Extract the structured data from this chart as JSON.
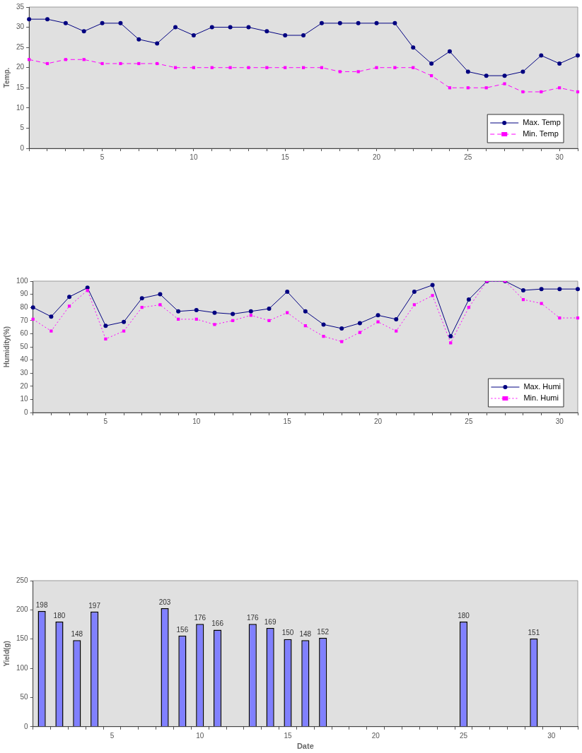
{
  "chart_data": [
    {
      "type": "line",
      "ylabel": "Temp.",
      "categories": [
        null,
        null,
        null,
        null,
        "5",
        null,
        null,
        null,
        null,
        "10",
        null,
        null,
        null,
        null,
        "15",
        null,
        null,
        null,
        null,
        "20",
        null,
        null,
        null,
        null,
        "25",
        null,
        null,
        null,
        null,
        "30",
        null
      ],
      "ylim": [
        0,
        35
      ],
      "yticks": [
        0,
        5,
        10,
        15,
        20,
        25,
        30,
        35
      ],
      "legend": "bottom right",
      "series": [
        {
          "name": "Max. Temp",
          "color": "#000080",
          "marker": "circle",
          "line_style": "solid",
          "values": [
            32,
            32,
            31,
            29,
            31,
            31,
            27,
            26,
            30,
            28,
            30,
            30,
            30,
            29,
            28,
            28,
            31,
            31,
            31,
            31,
            31,
            25,
            21,
            24,
            19,
            18,
            18,
            19,
            23,
            21,
            23
          ]
        },
        {
          "name": "Min. Temp",
          "color": "#ff00ff",
          "marker": "square",
          "line_style": "dashed",
          "values": [
            22,
            21,
            22,
            22,
            21,
            21,
            21,
            21,
            20,
            20,
            20,
            20,
            20,
            20,
            20,
            20,
            20,
            19,
            19,
            20,
            20,
            20,
            18,
            15,
            15,
            15,
            16,
            14,
            14,
            15,
            14
          ]
        }
      ]
    },
    {
      "type": "line",
      "ylabel": "Humidity(%)",
      "categories": [
        null,
        null,
        null,
        null,
        "5",
        null,
        null,
        null,
        null,
        "10",
        null,
        null,
        null,
        null,
        "15",
        null,
        null,
        null,
        null,
        "20",
        null,
        null,
        null,
        null,
        "25",
        null,
        null,
        null,
        null,
        "30",
        null
      ],
      "ylim": [
        0,
        100
      ],
      "yticks": [
        0,
        10,
        20,
        30,
        40,
        50,
        60,
        70,
        80,
        90,
        100
      ],
      "legend": "bottom right",
      "series": [
        {
          "name": "Max. Humi",
          "color": "#000080",
          "marker": "circle",
          "line_style": "solid",
          "values": [
            80,
            73,
            88,
            95,
            66,
            69,
            87,
            90,
            77,
            78,
            76,
            75,
            77,
            79,
            92,
            77,
            67,
            64,
            68,
            74,
            71,
            92,
            97,
            58,
            86,
            100,
            100,
            93,
            94,
            94,
            94
          ]
        },
        {
          "name": "Min. Humi",
          "color": "#ff00ff",
          "marker": "square",
          "line_style": "dotted",
          "values": [
            71,
            62,
            81,
            93,
            56,
            62,
            80,
            82,
            71,
            71,
            67,
            70,
            74,
            70,
            76,
            66,
            58,
            54,
            61,
            69,
            62,
            82,
            89,
            53,
            80,
            100,
            100,
            86,
            83,
            72,
            72
          ]
        }
      ]
    },
    {
      "type": "bar",
      "ylabel": "Yield(g)",
      "xlabel": "Date",
      "categories": [
        null,
        null,
        null,
        null,
        "5",
        null,
        null,
        null,
        null,
        "10",
        null,
        null,
        null,
        null,
        "15",
        null,
        null,
        null,
        null,
        "20",
        null,
        null,
        null,
        null,
        "25",
        null,
        null,
        null,
        null,
        "30",
        null
      ],
      "ylim": [
        0,
        250
      ],
      "yticks": [
        0,
        50,
        100,
        150,
        200,
        250
      ],
      "color": "#8080ff",
      "data_labels": true,
      "values": [
        198,
        180,
        148,
        197,
        null,
        null,
        null,
        203,
        156,
        176,
        166,
        null,
        176,
        169,
        150,
        148,
        152,
        null,
        null,
        null,
        null,
        null,
        null,
        null,
        180,
        null,
        null,
        null,
        151,
        null,
        null
      ]
    }
  ]
}
